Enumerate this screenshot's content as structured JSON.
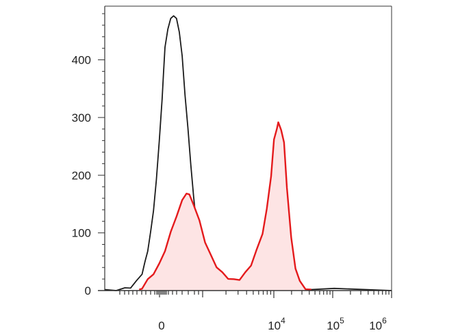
{
  "chart_data": {
    "type": "area",
    "title": "",
    "xlabel": "",
    "ylabel": "",
    "x_scale": "biexponential",
    "ylim": [
      0,
      480
    ],
    "y_ticks": [
      0,
      100,
      200,
      300,
      400
    ],
    "y_tick_labels": [
      "0",
      "100",
      "200",
      "300",
      "400"
    ],
    "x_tick_labels": [
      {
        "base": "0",
        "exp": ""
      },
      {
        "base": "10",
        "exp": "4"
      },
      {
        "base": "10",
        "exp": "5"
      },
      {
        "base": "10",
        "exp": "6"
      }
    ],
    "grid": false,
    "legend": "none",
    "series": [
      {
        "color": "#1a1a1a",
        "fill": false,
        "points": [
          [
            0.0,
            0
          ],
          [
            0.04,
            1
          ],
          [
            0.07,
            3
          ],
          [
            0.09,
            6
          ],
          [
            0.11,
            15
          ],
          [
            0.13,
            30
          ],
          [
            0.14,
            48
          ],
          [
            0.15,
            70
          ],
          [
            0.16,
            100
          ],
          [
            0.17,
            140
          ],
          [
            0.18,
            190
          ],
          [
            0.19,
            260
          ],
          [
            0.2,
            330
          ],
          [
            0.205,
            380
          ],
          [
            0.21,
            420
          ],
          [
            0.22,
            455
          ],
          [
            0.23,
            470
          ],
          [
            0.24,
            478
          ],
          [
            0.25,
            470
          ],
          [
            0.26,
            450
          ],
          [
            0.27,
            405
          ],
          [
            0.28,
            340
          ],
          [
            0.29,
            280
          ],
          [
            0.3,
            220
          ],
          [
            0.31,
            160
          ],
          [
            0.32,
            115
          ],
          [
            0.33,
            85
          ],
          [
            0.34,
            62
          ],
          [
            0.35,
            48
          ],
          [
            0.37,
            35
          ],
          [
            0.39,
            25
          ],
          [
            0.42,
            18
          ],
          [
            0.45,
            14
          ],
          [
            0.5,
            10
          ],
          [
            0.55,
            8
          ],
          [
            0.6,
            6
          ],
          [
            0.65,
            4
          ],
          [
            0.7,
            3
          ],
          [
            0.8,
            2
          ],
          [
            1.0,
            1
          ]
        ]
      },
      {
        "color": "#e41a1c",
        "fill": true,
        "fill_color": "#fde4e4",
        "points": [
          [
            0.12,
            0
          ],
          [
            0.13,
            5
          ],
          [
            0.15,
            18
          ],
          [
            0.17,
            30
          ],
          [
            0.19,
            45
          ],
          [
            0.21,
            70
          ],
          [
            0.23,
            100
          ],
          [
            0.25,
            130
          ],
          [
            0.27,
            155
          ],
          [
            0.285,
            170
          ],
          [
            0.295,
            165
          ],
          [
            0.31,
            150
          ],
          [
            0.33,
            120
          ],
          [
            0.35,
            85
          ],
          [
            0.37,
            60
          ],
          [
            0.39,
            42
          ],
          [
            0.41,
            30
          ],
          [
            0.43,
            22
          ],
          [
            0.45,
            18
          ],
          [
            0.47,
            20
          ],
          [
            0.49,
            30
          ],
          [
            0.51,
            45
          ],
          [
            0.53,
            70
          ],
          [
            0.55,
            100
          ],
          [
            0.565,
            140
          ],
          [
            0.58,
            200
          ],
          [
            0.59,
            260
          ],
          [
            0.6,
            282
          ],
          [
            0.605,
            290
          ],
          [
            0.615,
            280
          ],
          [
            0.625,
            255
          ],
          [
            0.635,
            180
          ],
          [
            0.65,
            90
          ],
          [
            0.665,
            40
          ],
          [
            0.68,
            15
          ],
          [
            0.7,
            4
          ],
          [
            0.72,
            0
          ]
        ]
      }
    ]
  }
}
